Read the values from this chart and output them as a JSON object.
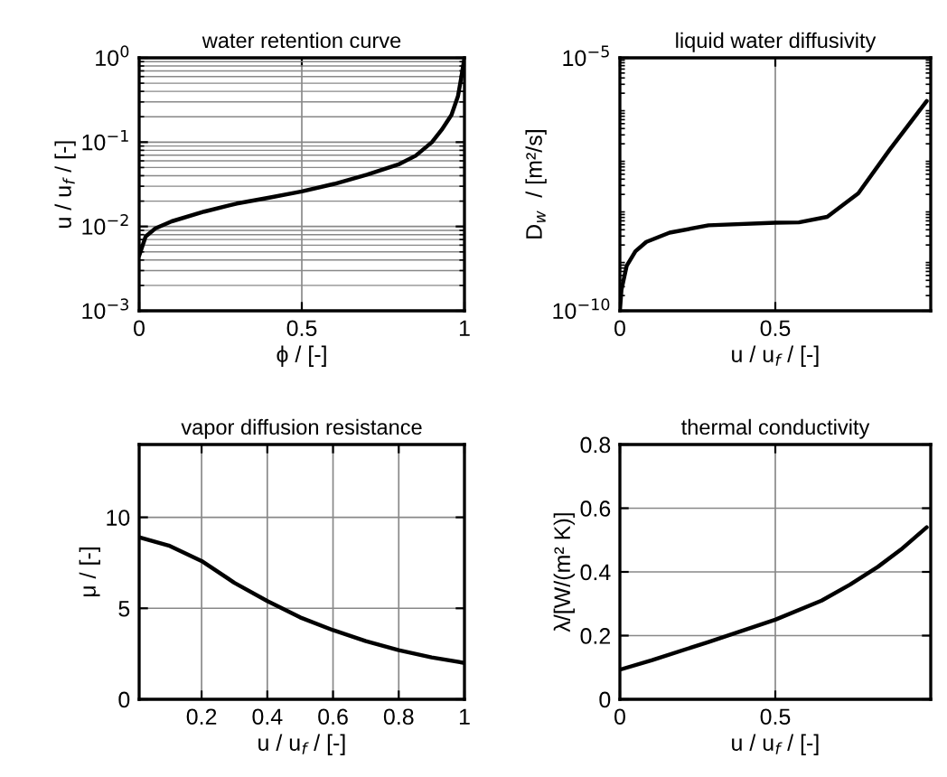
{
  "chart_data": [
    {
      "type": "line",
      "title": "water retention curve",
      "xlabel": "ϕ / [-]",
      "ylabel": "u / u$_{f}$ / [-]",
      "log": "y",
      "grid": true,
      "xlim": [
        0,
        1
      ],
      "xticks": [
        0,
        0.5,
        1
      ],
      "ylim": [
        0.001,
        1
      ],
      "yticks": [
        {
          "value": 0.001,
          "label": "10$^{−3}$"
        },
        {
          "value": 0.01,
          "label": "10$^{−2}$"
        },
        {
          "value": 0.1,
          "label": "10$^{−1}$"
        },
        {
          "value": 1,
          "label": "10$^{0}$"
        }
      ],
      "series": [
        {
          "color": "#000000",
          "x": [
            0,
            0.02,
            0.05,
            0.1,
            0.2,
            0.3,
            0.4,
            0.5,
            0.6,
            0.7,
            0.8,
            0.85,
            0.9,
            0.93,
            0.96,
            0.98,
            0.99,
            1.0
          ],
          "values": [
            0.0045,
            0.0076,
            0.0095,
            0.0115,
            0.015,
            0.0187,
            0.022,
            0.026,
            0.032,
            0.041,
            0.055,
            0.069,
            0.1,
            0.14,
            0.21,
            0.35,
            0.58,
            1.0
          ]
        }
      ]
    },
    {
      "type": "line",
      "title": "liquid water diffusivity",
      "xlabel": "u / u$_{f}$ / [-]",
      "ylabel": "D$_{w}$  / [m²/s]",
      "log": "y",
      "grid": "x",
      "xlim": [
        0,
        1
      ],
      "xticks": [
        0,
        0.5
      ],
      "ylim": [
        1e-10,
        1e-05
      ],
      "yticks": [
        {
          "value": 1e-10,
          "label": "10$^{−10}$"
        },
        {
          "value": 1e-05,
          "label": "10$^{−5}$"
        }
      ],
      "series": [
        {
          "color": "#000000",
          "x": [
            0,
            0.005,
            0.022,
            0.05,
            0.085,
            0.16,
            0.285,
            0.5,
            0.576,
            0.667,
            0.767,
            0.867,
            0.987
          ],
          "values": [
            1e-10,
            2.6e-10,
            7.8e-10,
            1.5e-09,
            2.3e-09,
            3.5e-09,
            4.9e-09,
            5.5e-09,
            5.6e-09,
            7.2e-09,
            2.1e-08,
            1.5e-07,
            1.4e-06
          ]
        }
      ]
    },
    {
      "type": "line",
      "title": "vapor diffusion resistance",
      "xlabel": "u / u$_{f}$ / [-]",
      "ylabel": "μ / [-]",
      "grid": true,
      "xlim": [
        0.01,
        1
      ],
      "xticks": [
        0.2,
        0.4,
        0.6,
        0.8,
        1
      ],
      "ylim": [
        0,
        14
      ],
      "yticks": [
        0,
        5,
        10
      ],
      "series": [
        {
          "color": "#000000",
          "x": [
            0.01,
            0.1,
            0.2,
            0.3,
            0.4,
            0.5,
            0.6,
            0.7,
            0.8,
            0.9,
            1.0
          ],
          "values": [
            8.9,
            8.45,
            7.6,
            6.4,
            5.4,
            4.5,
            3.8,
            3.2,
            2.7,
            2.3,
            2.0
          ]
        }
      ]
    },
    {
      "type": "line",
      "title": "thermal conductivity",
      "xlabel": "u / u$_{f}$ / [-]",
      "ylabel": "λ/[W/(m² K)]",
      "grid": true,
      "xlim": [
        0,
        1
      ],
      "xticks": [
        0,
        0.5
      ],
      "ylim": [
        0,
        0.8
      ],
      "yticks": [
        0,
        0.2,
        0.4,
        0.6,
        0.8
      ],
      "series": [
        {
          "color": "#000000",
          "x": [
            0,
            0.104,
            0.285,
            0.5,
            0.649,
            0.74,
            0.83,
            0.904,
            0.987
          ],
          "values": [
            0.093,
            0.123,
            0.18,
            0.25,
            0.31,
            0.36,
            0.416,
            0.47,
            0.54
          ]
        }
      ]
    }
  ]
}
